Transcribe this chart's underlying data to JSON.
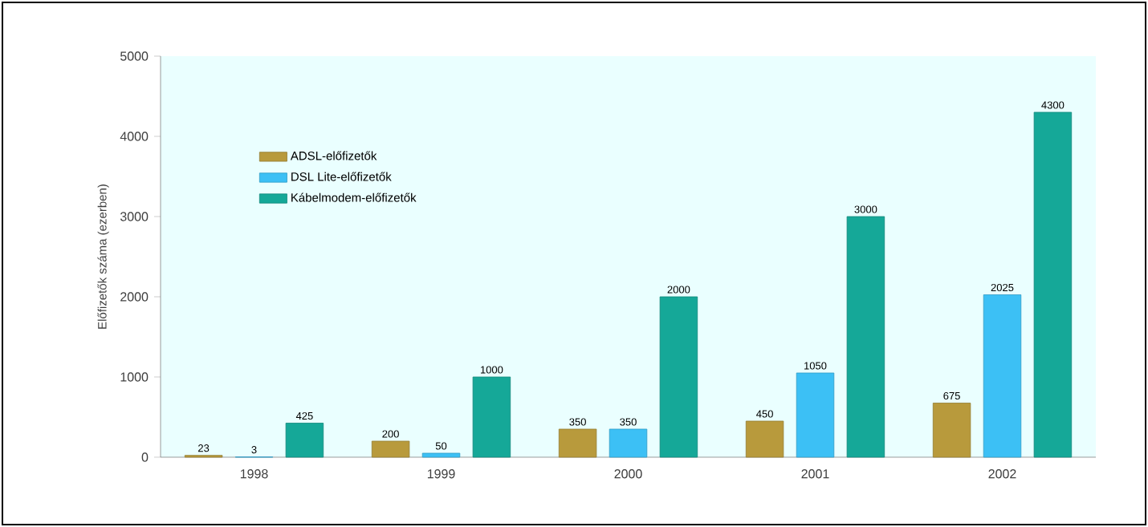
{
  "chart_data": {
    "type": "bar",
    "ylabel": "Előfizetők száma (ezerben)",
    "categories": [
      "1998",
      "1999",
      "2000",
      "2001",
      "2002"
    ],
    "series": [
      {
        "name": "ADSL-előfizetők",
        "color": "#b89a3c",
        "values": [
          23,
          200,
          350,
          450,
          675
        ]
      },
      {
        "name": "DSL Lite-előfizetők",
        "color": "#3cc0f5",
        "values": [
          3,
          50,
          350,
          1050,
          2025
        ]
      },
      {
        "name": "Kábelmodem-előfizetők",
        "color": "#15a898",
        "values": [
          425,
          1000,
          2000,
          3000,
          4300
        ]
      }
    ],
    "ylim": [
      0,
      5000
    ],
    "yticks": [
      0,
      1000,
      2000,
      3000,
      4000,
      5000
    ],
    "data_labels": true,
    "legend": "top left",
    "grid": false
  }
}
